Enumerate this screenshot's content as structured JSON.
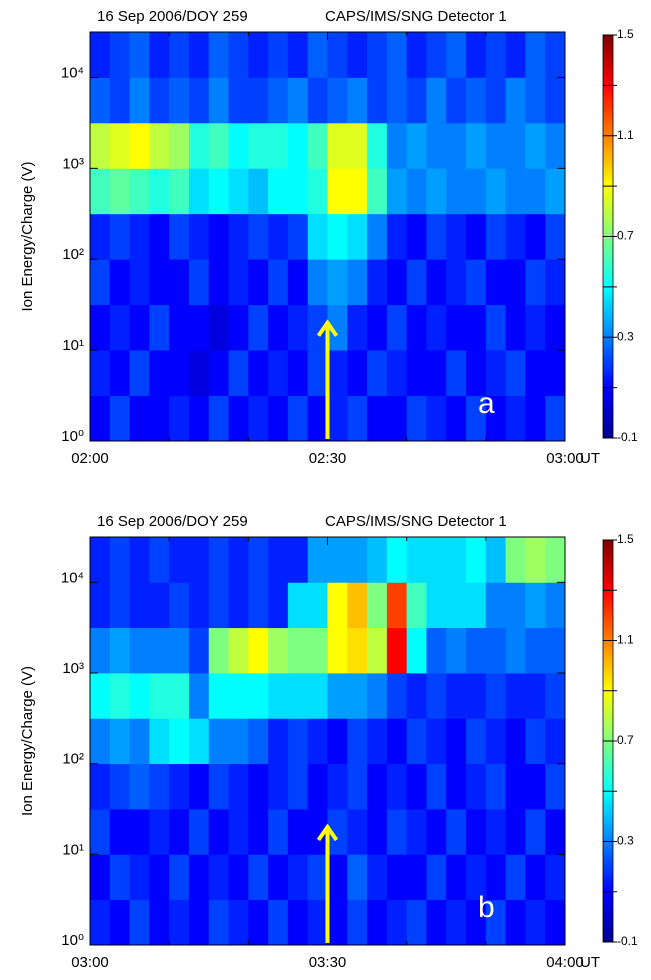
{
  "chart_data": [
    {
      "type": "heatmap",
      "header_left": "16 Sep 2006/DOY 259",
      "header_right": "CAPS/IMS/SNG   Detector 1",
      "ylabel": "Ion Energy/Charge (V)",
      "panel_label": "a",
      "x_unit_label": "UT",
      "colormap": "jet",
      "log_y": true,
      "xlim": [
        0,
        60
      ],
      "xticks": [
        {
          "value": 0,
          "label": "02:00"
        },
        {
          "value": 30,
          "label": "02:30"
        },
        {
          "value": 60,
          "label": "03:00"
        }
      ],
      "x_minor_ticks": [
        10,
        20,
        40,
        50
      ],
      "ylim": [
        1,
        31623
      ],
      "yticks": [
        {
          "value": 1,
          "label": "10⁰"
        },
        {
          "value": 10,
          "label": "10¹"
        },
        {
          "value": 100,
          "label": "10²"
        },
        {
          "value": 1000,
          "label": "10³"
        },
        {
          "value": 10000,
          "label": "10⁴"
        }
      ],
      "clim": [
        -0.1,
        1.5
      ],
      "cticks": [
        1.5,
        1.1,
        0.7,
        0.3,
        -0.1
      ],
      "c_minor_ticks": [
        1.3,
        0.9,
        0.5,
        0.1
      ],
      "arrow": {
        "x": 30,
        "y_tip": 20,
        "color": "#ffff00"
      },
      "z": [
        [
          0.1,
          0.2,
          0.1,
          0.1,
          0.15,
          0.1,
          0.2,
          0.1,
          0.15,
          0.1,
          0.2,
          0.1,
          0.15,
          0.2,
          0.1,
          0.1,
          0.2,
          0.15,
          0.1,
          0.2,
          0.1,
          0.15,
          0.1,
          0.2
        ],
        [
          0.15,
          0.1,
          0.2,
          0.1,
          0.1,
          0.05,
          0.1,
          0.2,
          0.1,
          0.15,
          0.1,
          0.2,
          0.15,
          0.1,
          0.2,
          0.15,
          0.1,
          0.1,
          0.2,
          0.1,
          0.15,
          0.2,
          0.1,
          0.1
        ],
        [
          0.1,
          0.15,
          0.1,
          0.2,
          0.1,
          0.1,
          0.05,
          0.1,
          0.2,
          0.1,
          0.15,
          0.2,
          0.3,
          0.15,
          0.1,
          0.2,
          0.1,
          0.15,
          0.1,
          0.1,
          0.2,
          0.1,
          0.15,
          0.1
        ],
        [
          0.2,
          0.1,
          0.15,
          0.1,
          0.1,
          0.2,
          0.1,
          0.15,
          0.1,
          0.2,
          0.1,
          0.3,
          0.35,
          0.3,
          0.15,
          0.1,
          0.2,
          0.1,
          0.15,
          0.2,
          0.1,
          0.1,
          0.2,
          0.15
        ],
        [
          0.15,
          0.2,
          0.15,
          0.1,
          0.2,
          0.15,
          0.1,
          0.15,
          0.2,
          0.15,
          0.2,
          0.45,
          0.5,
          0.45,
          0.3,
          0.15,
          0.1,
          0.2,
          0.15,
          0.1,
          0.2,
          0.15,
          0.1,
          0.2
        ],
        [
          0.6,
          0.65,
          0.6,
          0.55,
          0.6,
          0.45,
          0.5,
          0.45,
          0.4,
          0.5,
          0.5,
          0.55,
          0.9,
          0.9,
          0.6,
          0.35,
          0.3,
          0.35,
          0.3,
          0.3,
          0.35,
          0.3,
          0.3,
          0.35
        ],
        [
          0.8,
          0.85,
          0.9,
          0.8,
          0.75,
          0.55,
          0.6,
          0.5,
          0.55,
          0.55,
          0.5,
          0.6,
          0.85,
          0.85,
          0.55,
          0.3,
          0.35,
          0.3,
          0.3,
          0.35,
          0.3,
          0.3,
          0.35,
          0.3
        ],
        [
          0.25,
          0.2,
          0.3,
          0.2,
          0.25,
          0.2,
          0.3,
          0.2,
          0.2,
          0.25,
          0.3,
          0.2,
          0.25,
          0.3,
          0.2,
          0.25,
          0.2,
          0.3,
          0.2,
          0.25,
          0.2,
          0.3,
          0.25,
          0.2
        ],
        [
          0.15,
          0.2,
          0.25,
          0.15,
          0.2,
          0.15,
          0.25,
          0.2,
          0.15,
          0.2,
          0.15,
          0.25,
          0.2,
          0.15,
          0.2,
          0.25,
          0.15,
          0.2,
          0.25,
          0.15,
          0.2,
          0.15,
          0.25,
          0.2
        ]
      ]
    },
    {
      "type": "heatmap",
      "header_left": "16 Sep 2006/DOY 259",
      "header_right": "CAPS/IMS/SNG   Detector 1",
      "ylabel": "Ion Energy/Charge (V)",
      "panel_label": "b",
      "x_unit_label": "UT",
      "colormap": "jet",
      "log_y": true,
      "xlim": [
        0,
        60
      ],
      "xticks": [
        {
          "value": 0,
          "label": "03:00"
        },
        {
          "value": 30,
          "label": "03:30"
        },
        {
          "value": 60,
          "label": "04:00"
        }
      ],
      "x_minor_ticks": [
        10,
        20,
        40,
        50
      ],
      "ylim": [
        1,
        31623
      ],
      "yticks": [
        {
          "value": 1,
          "label": "10⁰"
        },
        {
          "value": 10,
          "label": "10¹"
        },
        {
          "value": 100,
          "label": "10²"
        },
        {
          "value": 1000,
          "label": "10³"
        },
        {
          "value": 10000,
          "label": "10⁴"
        }
      ],
      "clim": [
        -0.1,
        1.5
      ],
      "cticks": [
        1.5,
        1.1,
        0.7,
        0.3,
        -0.1
      ],
      "c_minor_ticks": [
        1.3,
        0.9,
        0.5,
        0.1
      ],
      "arrow": {
        "x": 30,
        "y_tip": 20,
        "color": "#ffff00"
      },
      "z": [
        [
          0.15,
          0.1,
          0.2,
          0.1,
          0.15,
          0.1,
          0.2,
          0.15,
          0.1,
          0.2,
          0.1,
          0.15,
          0.1,
          0.2,
          0.1,
          0.15,
          0.2,
          0.1,
          0.15,
          0.1,
          0.2,
          0.1,
          0.15,
          0.1
        ],
        [
          0.1,
          0.2,
          0.15,
          0.1,
          0.2,
          0.1,
          0.15,
          0.1,
          0.2,
          0.1,
          0.15,
          0.2,
          0.1,
          0.25,
          0.15,
          0.1,
          0.1,
          0.2,
          0.1,
          0.15,
          0.1,
          0.2,
          0.1,
          0.15
        ],
        [
          0.2,
          0.1,
          0.1,
          0.15,
          0.1,
          0.2,
          0.1,
          0.15,
          0.1,
          0.2,
          0.1,
          0.1,
          0.2,
          0.15,
          0.1,
          0.2,
          0.15,
          0.1,
          0.2,
          0.1,
          0.15,
          0.1,
          0.2,
          0.1
        ],
        [
          0.15,
          0.2,
          0.25,
          0.2,
          0.15,
          0.1,
          0.2,
          0.15,
          0.1,
          0.15,
          0.2,
          0.1,
          0.15,
          0.2,
          0.1,
          0.15,
          0.1,
          0.2,
          0.1,
          0.15,
          0.2,
          0.1,
          0.1,
          0.2
        ],
        [
          0.3,
          0.35,
          0.3,
          0.45,
          0.5,
          0.45,
          0.3,
          0.3,
          0.25,
          0.15,
          0.2,
          0.15,
          0.1,
          0.2,
          0.15,
          0.1,
          0.2,
          0.15,
          0.1,
          0.2,
          0.15,
          0.1,
          0.2,
          0.15
        ],
        [
          0.5,
          0.55,
          0.5,
          0.55,
          0.55,
          0.3,
          0.5,
          0.5,
          0.5,
          0.45,
          0.45,
          0.45,
          0.35,
          0.35,
          0.3,
          0.2,
          0.15,
          0.2,
          0.15,
          0.15,
          0.2,
          0.15,
          0.15,
          0.2
        ],
        [
          0.3,
          0.35,
          0.3,
          0.3,
          0.3,
          0.2,
          0.7,
          0.8,
          0.9,
          0.75,
          0.7,
          0.7,
          0.9,
          0.95,
          0.8,
          1.3,
          0.5,
          0.25,
          0.3,
          0.25,
          0.25,
          0.3,
          0.25,
          0.25
        ],
        [
          0.15,
          0.2,
          0.15,
          0.15,
          0.2,
          0.15,
          0.2,
          0.15,
          0.2,
          0.15,
          0.45,
          0.45,
          0.9,
          1.0,
          0.7,
          1.2,
          0.6,
          0.45,
          0.45,
          0.45,
          0.3,
          0.3,
          0.35,
          0.3
        ],
        [
          0.15,
          0.2,
          0.15,
          0.2,
          0.15,
          0.15,
          0.2,
          0.15,
          0.2,
          0.15,
          0.15,
          0.35,
          0.35,
          0.35,
          0.4,
          0.5,
          0.45,
          0.45,
          0.45,
          0.5,
          0.4,
          0.7,
          0.75,
          0.7
        ]
      ]
    }
  ]
}
